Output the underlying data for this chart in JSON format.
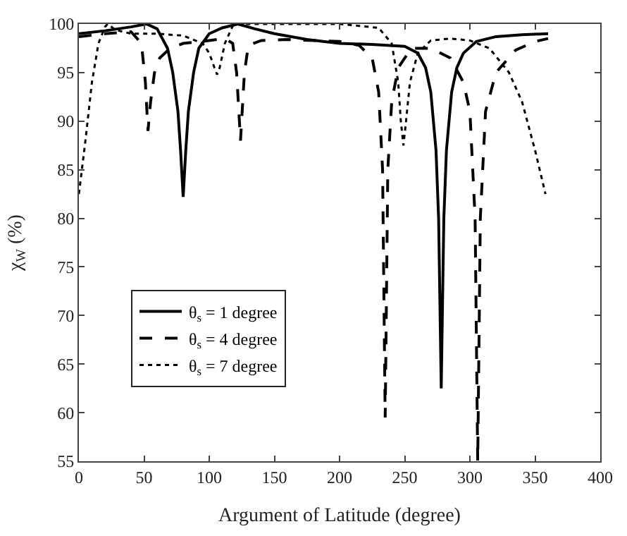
{
  "chart_data": {
    "type": "line",
    "xlabel": "Argument of Latitude (degree)",
    "ylabel": "χ$_{W}$ (%)",
    "xlim": [
      0,
      400
    ],
    "xticks": [
      0,
      50,
      100,
      150,
      200,
      250,
      300,
      350,
      400
    ],
    "ylim": [
      55,
      100
    ],
    "yticks": [
      55,
      60,
      65,
      70,
      75,
      80,
      85,
      90,
      95,
      100
    ],
    "legend": "bottom left",
    "marker": "none",
    "series": [
      {
        "name": "θ$_{s}$ = 1 degree",
        "color": "#000000",
        "line_style": "solid",
        "x": [
          0,
          20,
          40,
          52,
          60,
          68,
          72,
          76,
          78,
          80,
          82,
          84,
          88,
          92,
          100,
          110,
          122,
          135,
          150,
          175,
          200,
          225,
          250,
          260,
          266,
          270,
          274,
          276,
          278,
          280,
          282,
          286,
          290,
          295,
          305,
          320,
          340,
          360
        ],
        "values": [
          99,
          99.3,
          99.7,
          100,
          99.5,
          97.5,
          95,
          91,
          87,
          82.2,
          87,
          91,
          95,
          97.5,
          99,
          99.6,
          100,
          99.5,
          99,
          98.4,
          98,
          97.9,
          97.7,
          97,
          95.5,
          93,
          87,
          80,
          62.5,
          80,
          87,
          93,
          95.5,
          97,
          98.2,
          98.7,
          98.9,
          99
        ]
      },
      {
        "name": "θ$_{s}$ = 4 degree",
        "color": "#000000",
        "line_style": "dashed",
        "x": [
          0,
          20,
          40,
          48,
          51,
          53,
          55,
          58,
          62,
          70,
          80,
          100,
          112,
          118,
          121,
          124,
          127,
          130,
          140,
          160,
          200,
          215,
          225,
          230,
          233,
          235,
          237,
          240,
          245,
          255,
          270,
          285,
          295,
          300,
          304,
          306,
          308,
          312,
          320,
          335,
          350,
          360
        ],
        "values": [
          98.7,
          99,
          99.2,
          98,
          94,
          89,
          92,
          95,
          96.5,
          97.5,
          98,
          98.3,
          98.5,
          98,
          95,
          88,
          95,
          97.8,
          98.3,
          98.4,
          98.2,
          97.8,
          96.5,
          93,
          85,
          59.5,
          85,
          92,
          95.5,
          97.5,
          97.5,
          96.5,
          94,
          91,
          80,
          55,
          80,
          91,
          95,
          97.3,
          98.2,
          98.5
        ]
      },
      {
        "name": "θ$_{s}$ = 7 degree",
        "color": "#000000",
        "line_style": "dotted",
        "x": [
          0,
          5,
          10,
          15,
          20,
          22,
          28,
          40,
          60,
          80,
          95,
          100,
          104,
          106,
          108,
          112,
          118,
          122,
          150,
          200,
          230,
          240,
          245,
          247,
          249,
          251,
          254,
          260,
          270,
          285,
          300,
          315,
          330,
          340,
          350,
          358
        ],
        "values": [
          82.5,
          88,
          94,
          98,
          99.7,
          100,
          99.4,
          99,
          99,
          98.8,
          98,
          97,
          95.5,
          94.8,
          95.5,
          98,
          99.8,
          100,
          100,
          100,
          99.6,
          98,
          94,
          90,
          87.5,
          90,
          94,
          97,
          98.3,
          98.5,
          98.3,
          97.5,
          95,
          92,
          87,
          82.5
        ]
      }
    ]
  }
}
